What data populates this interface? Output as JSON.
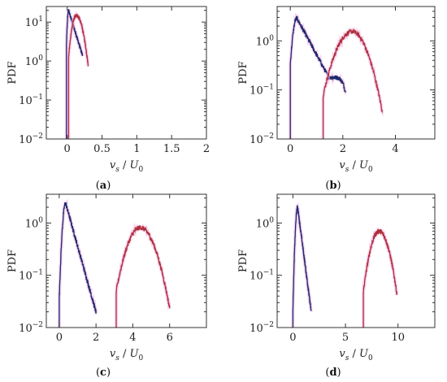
{
  "chart_data": [
    {
      "type": "line",
      "panel_label": "a",
      "ylabel": "PDF",
      "xlabel_main": "v",
      "xlabel_sub": "s",
      "xlabel_denom_main": "U",
      "xlabel_denom_sub": "0",
      "xlim": [
        -0.3,
        2.0
      ],
      "ylim_log10": [
        -2,
        1.4
      ],
      "y_log_scale": true,
      "xticks": [
        0,
        0.5,
        1,
        1.5,
        2
      ],
      "xtick_labels": [
        "0",
        "0.5",
        "1",
        "1.5",
        "2"
      ],
      "ytick_exponents": [
        -2,
        -1,
        0,
        1
      ],
      "ytick_base": "10",
      "ytick_exponent_labels": [
        "−2",
        "−1",
        "0",
        "1"
      ],
      "series": [
        {
          "color": "#1b2a6b",
          "shape": "lognormal",
          "peak_x": 0.02,
          "peak_y": 20,
          "left_width": 0.015,
          "right_width": 0.12,
          "x_start": -0.01,
          "x_end": 0.22
        },
        {
          "color": "#b0303a",
          "shape": "gaussian",
          "peak_x": 0.13,
          "peak_y": 15,
          "left_width": 0.05,
          "right_width": 0.07,
          "x_start": 0.02,
          "x_end": 0.3
        }
      ]
    },
    {
      "type": "line",
      "panel_label": "b",
      "ylabel": "PDF",
      "xlabel_main": "v",
      "xlabel_sub": "s",
      "xlabel_denom_main": "U",
      "xlabel_denom_sub": "0",
      "xlim": [
        -0.5,
        5.5
      ],
      "ylim_log10": [
        -2,
        0.7
      ],
      "y_log_scale": true,
      "xticks": [
        0,
        2,
        4
      ],
      "xtick_labels": [
        "0",
        "2",
        "4"
      ],
      "ytick_exponents": [
        -2,
        -1,
        0
      ],
      "ytick_base": "10",
      "ytick_exponent_labels": [
        "−2",
        "−1",
        "0"
      ],
      "series": [
        {
          "color": "#1b2a6b",
          "shape": "lognormal",
          "peak_x": 0.25,
          "peak_y": 2.9,
          "left_width": 0.12,
          "right_width": 0.7,
          "x_start": 0.0,
          "x_end": 2.1,
          "bump_x": 1.6,
          "bump_y": 0.18
        },
        {
          "color": "#b0303a",
          "shape": "gaussian",
          "peak_x": 2.35,
          "peak_y": 1.55,
          "left_width": 0.45,
          "right_width": 0.42,
          "x_start": 1.25,
          "x_end": 3.5
        }
      ]
    },
    {
      "type": "line",
      "panel_label": "c",
      "ylabel": "PDF",
      "xlabel_main": "v",
      "xlabel_sub": "s",
      "xlabel_denom_main": "U",
      "xlabel_denom_sub": "0",
      "xlim": [
        -0.7,
        8.0
      ],
      "ylim_log10": [
        -2,
        0.55
      ],
      "y_log_scale": true,
      "xticks": [
        0,
        2,
        4,
        6
      ],
      "xtick_labels": [
        "0",
        "2",
        "4",
        "6"
      ],
      "ytick_exponents": [
        -2,
        -1,
        0
      ],
      "ytick_base": "10",
      "ytick_exponent_labels": [
        "−2",
        "−1",
        "0"
      ],
      "series": [
        {
          "color": "#1b2a6b",
          "shape": "lognormal",
          "peak_x": 0.35,
          "peak_y": 2.4,
          "left_width": 0.12,
          "right_width": 0.55,
          "x_start": 0.0,
          "x_end": 2.0
        },
        {
          "color": "#b0303a",
          "shape": "gaussian",
          "peak_x": 4.4,
          "peak_y": 0.82,
          "left_width": 0.55,
          "right_width": 0.6,
          "x_start": 3.1,
          "x_end": 6.0
        }
      ]
    },
    {
      "type": "line",
      "panel_label": "d",
      "ylabel": "PDF",
      "xlabel_main": "v",
      "xlabel_sub": "s",
      "xlabel_denom_main": "U",
      "xlabel_denom_sub": "0",
      "xlim": [
        -1.5,
        13.5
      ],
      "ylim_log10": [
        -2,
        0.55
      ],
      "y_log_scale": true,
      "xticks": [
        0,
        5,
        10
      ],
      "xtick_labels": [
        "0",
        "5",
        "10"
      ],
      "ytick_exponents": [
        -2,
        -1,
        0
      ],
      "ytick_base": "10",
      "ytick_exponent_labels": [
        "−2",
        "−1",
        "0"
      ],
      "series": [
        {
          "color": "#1b2a6b",
          "shape": "lognormal",
          "peak_x": 0.45,
          "peak_y": 2.0,
          "left_width": 0.15,
          "right_width": 0.45,
          "x_start": 0.0,
          "x_end": 1.75
        },
        {
          "color": "#b0303a",
          "shape": "gaussian",
          "peak_x": 8.2,
          "peak_y": 0.7,
          "left_width": 0.65,
          "right_width": 0.72,
          "x_start": 6.7,
          "x_end": 9.9
        }
      ]
    }
  ]
}
